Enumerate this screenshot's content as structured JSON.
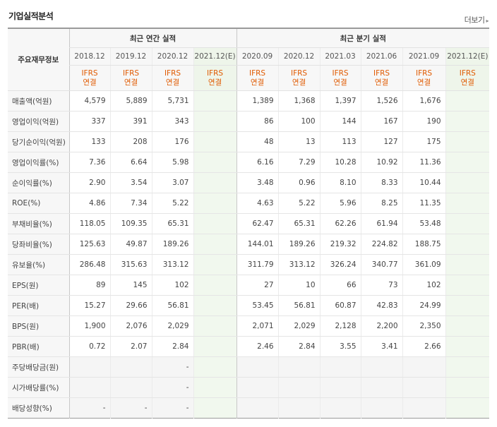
{
  "header": {
    "title": "기업실적분석",
    "more_label": "더보기"
  },
  "table": {
    "rowhead_label": "주요재무정보",
    "groups": {
      "annual": "최근 연간 실적",
      "quarterly": "최근 분기 실적"
    },
    "annual_periods": [
      "2018.12",
      "2019.12",
      "2020.12",
      "2021.12(E)"
    ],
    "quarter_periods": [
      "2020.09",
      "2020.12",
      "2021.03",
      "2021.06",
      "2021.09",
      "2021.12(E)"
    ],
    "ifrs_top": "IFRS",
    "ifrs_bottom": "연결",
    "rows": [
      {
        "label": "매출액(억원)",
        "annual": [
          "4,579",
          "5,889",
          "5,731",
          ""
        ],
        "quarter": [
          "1,389",
          "1,368",
          "1,397",
          "1,526",
          "1,676",
          ""
        ]
      },
      {
        "label": "영업이익(억원)",
        "annual": [
          "337",
          "391",
          "343",
          ""
        ],
        "quarter": [
          "86",
          "100",
          "144",
          "167",
          "190",
          ""
        ]
      },
      {
        "label": "당기순이익(억원)",
        "annual": [
          "133",
          "208",
          "176",
          ""
        ],
        "quarter": [
          "48",
          "13",
          "113",
          "127",
          "175",
          ""
        ]
      },
      {
        "label": "영업이익률(%)",
        "annual": [
          "7.36",
          "6.64",
          "5.98",
          ""
        ],
        "quarter": [
          "6.16",
          "7.29",
          "10.28",
          "10.92",
          "11.36",
          ""
        ]
      },
      {
        "label": "순이익률(%)",
        "annual": [
          "2.90",
          "3.54",
          "3.07",
          ""
        ],
        "quarter": [
          "3.48",
          "0.96",
          "8.10",
          "8.33",
          "10.44",
          ""
        ]
      },
      {
        "label": "ROE(%)",
        "annual": [
          "4.86",
          "7.34",
          "5.22",
          ""
        ],
        "quarter": [
          "4.63",
          "5.22",
          "5.96",
          "8.25",
          "11.35",
          ""
        ]
      },
      {
        "label": "부채비율(%)",
        "annual": [
          "118.05",
          "109.35",
          "65.31",
          ""
        ],
        "quarter": [
          "62.47",
          "65.31",
          "62.26",
          "61.94",
          "53.48",
          ""
        ]
      },
      {
        "label": "당좌비율(%)",
        "annual": [
          "125.63",
          "49.87",
          "189.26",
          ""
        ],
        "quarter": [
          "144.01",
          "189.26",
          "219.32",
          "224.82",
          "188.75",
          ""
        ]
      },
      {
        "label": "유보율(%)",
        "annual": [
          "286.48",
          "315.63",
          "313.12",
          ""
        ],
        "quarter": [
          "311.79",
          "313.12",
          "326.24",
          "340.77",
          "361.09",
          ""
        ]
      },
      {
        "label": "EPS(원)",
        "annual": [
          "89",
          "145",
          "102",
          ""
        ],
        "quarter": [
          "27",
          "10",
          "66",
          "73",
          "102",
          ""
        ]
      },
      {
        "label": "PER(배)",
        "annual": [
          "15.27",
          "29.66",
          "56.81",
          ""
        ],
        "quarter": [
          "53.45",
          "56.81",
          "60.87",
          "42.83",
          "24.99",
          ""
        ]
      },
      {
        "label": "BPS(원)",
        "annual": [
          "1,900",
          "2,076",
          "2,029",
          ""
        ],
        "quarter": [
          "2,071",
          "2,029",
          "2,128",
          "2,200",
          "2,350",
          ""
        ]
      },
      {
        "label": "PBR(배)",
        "annual": [
          "0.72",
          "2.07",
          "2.84",
          ""
        ],
        "quarter": [
          "2.46",
          "2.84",
          "3.55",
          "3.41",
          "2.66",
          ""
        ]
      },
      {
        "label": "주당배당금(원)",
        "annual": [
          "",
          "",
          "-",
          ""
        ],
        "quarter": [
          "",
          "",
          "",
          "",
          "",
          ""
        ]
      },
      {
        "label": "시가배당률(%)",
        "annual": [
          "",
          "",
          "-",
          ""
        ],
        "quarter": [
          "",
          "",
          "",
          "",
          "",
          ""
        ]
      },
      {
        "label": "배당성향(%)",
        "annual": [
          "-",
          "-",
          "-",
          ""
        ],
        "quarter": [
          "",
          "",
          "",
          "",
          "",
          ""
        ]
      }
    ]
  }
}
